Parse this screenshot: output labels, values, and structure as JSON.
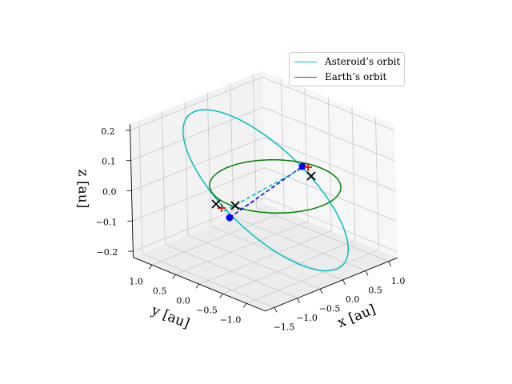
{
  "chart_data": {
    "type": "line3d",
    "xlabel": "x [au]",
    "ylabel": "y [au]",
    "zlabel": "z [au]",
    "xlim": [
      -1.7,
      1.2
    ],
    "ylim": [
      -1.4,
      1.4
    ],
    "zlim": [
      -0.22,
      0.22
    ],
    "xticks": [
      -1.5,
      -1.0,
      -0.5,
      0.0,
      0.5,
      1.0
    ],
    "yticks": [
      -1.0,
      -0.5,
      0.0,
      0.5,
      1.0
    ],
    "zticks": [
      -0.2,
      -0.1,
      0.0,
      0.1,
      0.2
    ],
    "xtick_labels": [
      "−1.5",
      "−1.0",
      "−0.5",
      "0.0",
      "0.5",
      "1.0"
    ],
    "ytick_labels": [
      "−1.0",
      "−0.5",
      "0.0",
      "0.5",
      "1.0"
    ],
    "ztick_labels": [
      "−0.2",
      "−0.1",
      "0.0",
      "0.1",
      "0.2"
    ],
    "grid": true,
    "legend_placement": "top-right",
    "series": [
      {
        "name": "Asteroid’s orbit",
        "color": "#00bfbf",
        "kind": "ellipse",
        "center": [
          -0.21,
          0.0,
          0.0
        ],
        "u": [
          0.3,
          -1.21,
          -0.2
        ],
        "v": [
          -0.96,
          -0.08,
          0.0
        ]
      },
      {
        "name": "Earth’s orbit",
        "color": "#008000",
        "kind": "ellipse",
        "center": [
          0,
          0,
          0
        ],
        "u": [
          1,
          0,
          0
        ],
        "v": [
          0,
          1,
          0
        ]
      }
    ],
    "segments": [
      {
        "color": "#0000ff",
        "style": "dashed",
        "from": [
          -1.346,
          -0.335,
          0
        ],
        "to": [
          0.841,
          0.236,
          0
        ]
      },
      {
        "color": "#00bfbf",
        "style": "dashed",
        "from": [
          -1.235,
          -0.108,
          0
        ],
        "to": [
          0.837,
          0.198,
          0
        ]
      }
    ],
    "markers": [
      {
        "type": "dot",
        "color": "#0000ff",
        "pos": [
          -1.346,
          -0.335,
          0
        ]
      },
      {
        "type": "dot",
        "color": "#0000ff",
        "pos": [
          0.841,
          0.236,
          0
        ]
      },
      {
        "type": "plus",
        "color": "#ff0000",
        "pos": [
          -1.175,
          0.001,
          0
        ]
      },
      {
        "type": "plus",
        "color": "#ff0000",
        "pos": [
          0.881,
          0.156,
          0
        ]
      },
      {
        "type": "cross",
        "color": "#000000",
        "pos": [
          -1.128,
          0.164,
          0
        ]
      },
      {
        "type": "cross",
        "color": "#000000",
        "pos": [
          -0.96,
          -0.08,
          0
        ]
      },
      {
        "type": "cross",
        "color": "#000000",
        "pos": [
          0.678,
          -0.108,
          0
        ]
      }
    ]
  },
  "legend": {
    "items": [
      {
        "label": "Asteroid’s orbit",
        "color": "#00bfbf"
      },
      {
        "label": "Earth’s orbit",
        "color": "#008000"
      }
    ]
  }
}
